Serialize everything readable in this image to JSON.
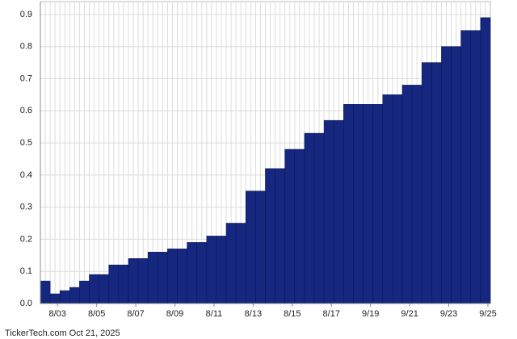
{
  "chart_data": {
    "type": "bar",
    "categories": [
      null,
      "8/03",
      null,
      null,
      null,
      "8/05",
      null,
      null,
      null,
      "8/07",
      null,
      null,
      null,
      "8/09",
      null,
      null,
      null,
      "8/11",
      null,
      null,
      null,
      "8/13",
      null,
      null,
      null,
      "8/15",
      null,
      null,
      null,
      "8/17",
      null,
      null,
      null,
      "9/19",
      null,
      null,
      null,
      "9/21",
      null,
      null,
      null,
      "9/23",
      null,
      null,
      null,
      "9/25"
    ],
    "values": [
      0.07,
      0.03,
      0.04,
      0.05,
      0.07,
      0.09,
      0.09,
      0.12,
      0.12,
      0.14,
      0.14,
      0.16,
      0.16,
      0.17,
      0.17,
      0.19,
      0.19,
      0.21,
      0.21,
      0.25,
      0.25,
      0.35,
      0.35,
      0.42,
      0.42,
      0.48,
      0.48,
      0.53,
      0.53,
      0.57,
      0.57,
      0.62,
      0.62,
      0.62,
      0.62,
      0.65,
      0.65,
      0.68,
      0.68,
      0.75,
      0.75,
      0.8,
      0.8,
      0.85,
      0.85,
      0.89
    ],
    "color": "#15277f",
    "ylim": [
      0,
      0.94
    ],
    "yticks": [
      {
        "value": 0,
        "label": "0.0"
      },
      0.1,
      0.2,
      0.3,
      0.4,
      0.5,
      0.6,
      0.7,
      0.8,
      0.9
    ],
    "grid": true,
    "footer": "TickerTech.com  Oct 21, 2025"
  }
}
